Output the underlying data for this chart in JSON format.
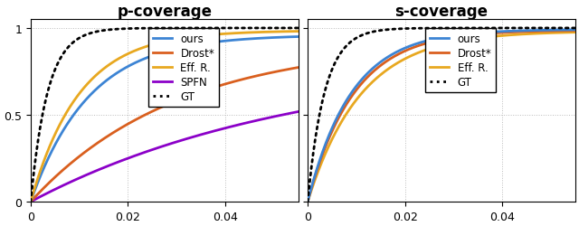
{
  "title_left": "p-coverage",
  "title_right": "s-coverage",
  "xlim": [
    0,
    0.055
  ],
  "ylim": [
    0,
    1.05
  ],
  "xticks": [
    0,
    0.02,
    0.04
  ],
  "yticks": [
    0,
    0.5,
    1
  ],
  "colors": {
    "ours": "#3c84d4",
    "drost": "#d95f1e",
    "effr": "#e8a820",
    "spfn": "#8b00c8",
    "gt": "#000000"
  },
  "legend_left": [
    "ours",
    "Drost*",
    "Eff. R.",
    "SPFN",
    "GT"
  ],
  "legend_right": [
    "ours",
    "Drost*",
    "Eff. R.",
    "GT"
  ],
  "background": "#ffffff",
  "grid_color": "#bbbbbb"
}
